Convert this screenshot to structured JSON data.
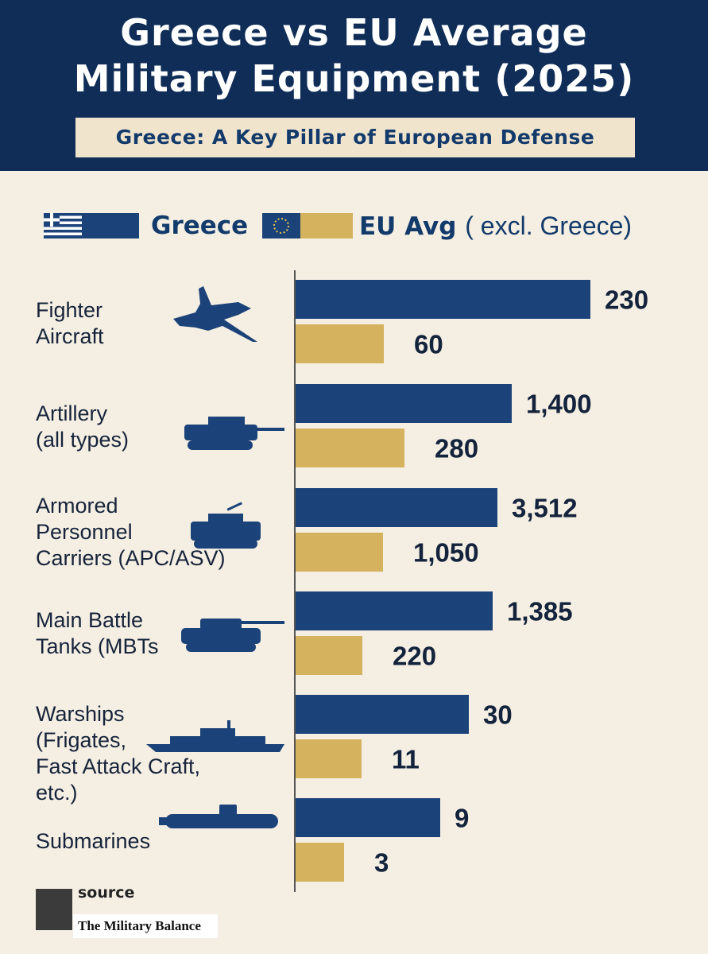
{
  "header": {
    "title_line1": "Greece vs EU Average",
    "title_line2": "Military Equipment (2025)",
    "subtitle": "Greece: A Key Pillar of European Defense"
  },
  "legend": {
    "greece_label": "Greece",
    "eu_label": "EU Avg",
    "eu_note": "( excl. Greece)"
  },
  "categories": [
    {
      "label_lines": [
        "Fighter",
        "Aircraft"
      ],
      "icon": "fighter-jet-icon"
    },
    {
      "label_lines": [
        "Artillery",
        "(all types)"
      ],
      "icon": "artillery-icon"
    },
    {
      "label_lines": [
        "Armored",
        "Personnel",
        "Carriers (APC/ASV)"
      ],
      "icon": "apc-icon"
    },
    {
      "label_lines": [
        "Main Battle",
        "Tanks (MBTs"
      ],
      "icon": "tank-icon"
    },
    {
      "label_lines": [
        "Warships",
        "(Frigates,",
        "Fast Attack Craft,",
        "etc.)"
      ],
      "icon": "warship-icon"
    },
    {
      "label_lines": [
        "Submarines"
      ],
      "icon": "submarine-icon"
    }
  ],
  "chart_data": {
    "type": "bar",
    "orientation": "horizontal",
    "categories": [
      "Fighter Aircraft",
      "Artillery (all types)",
      "Armored Personnel Carriers (APC/ASV)",
      "Main Battle Tanks (MBTs",
      "Warships (Frigates, Fast Attack Craft, etc.)",
      "Submarines"
    ],
    "series": [
      {
        "name": "Greece",
        "color": "#1c4379",
        "values": [
          230,
          1400,
          3512,
          1385,
          30,
          9
        ],
        "labels": [
          "230",
          "1,400",
          "3,512",
          "1,385",
          "30",
          "9"
        ]
      },
      {
        "name": "EU Avg ( excl. Greece)",
        "color": "#d4b25e",
        "values": [
          60,
          280,
          1050,
          220,
          11,
          3
        ],
        "labels": [
          "60",
          "280",
          "1,050",
          "220",
          "11",
          "3"
        ]
      }
    ],
    "grid": false,
    "legend_position": "top"
  },
  "source": {
    "label": "source",
    "name": "The Military Balance"
  },
  "colors": {
    "header_bg": "#0f2d57",
    "background": "#f5efe3",
    "greece_bar": "#1c4379",
    "eu_bar": "#d4b25e"
  }
}
